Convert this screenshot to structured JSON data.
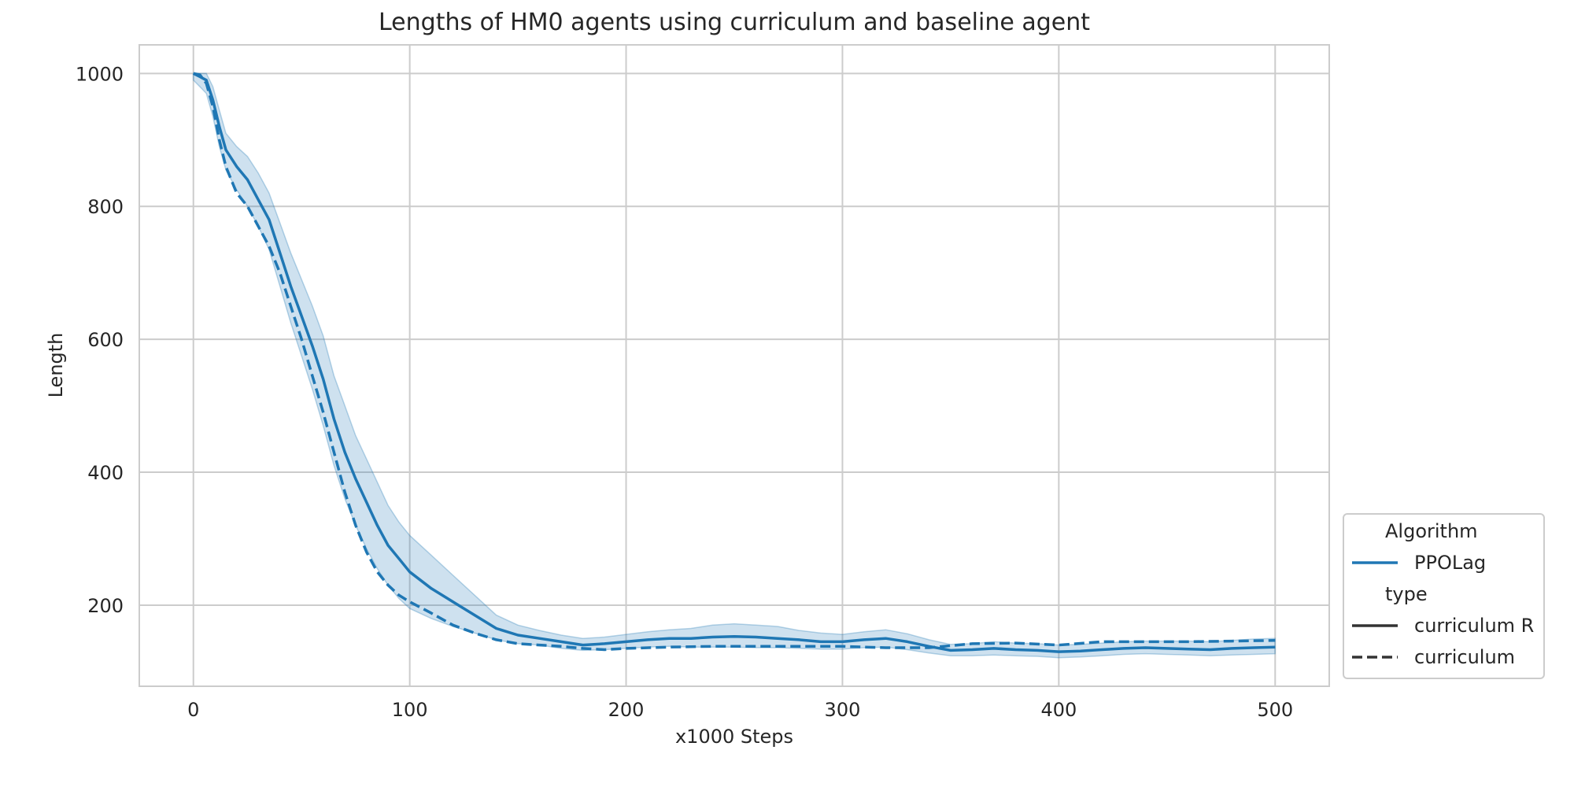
{
  "chart_data": {
    "type": "line",
    "title": "Lengths of HM0 agents using curriculum and baseline agent",
    "xlabel": "x1000 Steps",
    "ylabel": "Length",
    "xlim": [
      -25,
      525
    ],
    "ylim": [
      78,
      1043
    ],
    "x_ticks": [
      0,
      100,
      200,
      300,
      400,
      500
    ],
    "y_ticks": [
      200,
      400,
      600,
      800,
      1000
    ],
    "grid": true,
    "legend_placement": "lower-right-outside",
    "colors": {
      "line": "#1f77b4",
      "band": "#1f77b4",
      "grid": "#cccccc",
      "spine": "#cccccc",
      "text": "#262626"
    },
    "legend": {
      "groups": [
        {
          "title": "Algorithm",
          "entries": [
            {
              "label": "PPOLag",
              "style": "solid",
              "color": "#1f77b4"
            }
          ]
        },
        {
          "title": "type",
          "entries": [
            {
              "label": "curriculum R",
              "style": "solid",
              "color": "#333333"
            },
            {
              "label": "curriculum",
              "style": "dashed",
              "color": "#333333"
            }
          ]
        }
      ]
    },
    "series": [
      {
        "algorithm": "PPOLag",
        "type": "curriculum R",
        "style": "solid",
        "x": [
          0,
          3,
          6,
          9,
          12,
          15,
          20,
          25,
          30,
          35,
          40,
          45,
          50,
          55,
          60,
          65,
          70,
          75,
          80,
          85,
          90,
          95,
          100,
          110,
          120,
          130,
          140,
          150,
          160,
          170,
          180,
          190,
          200,
          210,
          220,
          230,
          240,
          250,
          260,
          270,
          280,
          290,
          300,
          310,
          320,
          330,
          340,
          350,
          360,
          370,
          380,
          390,
          400,
          410,
          420,
          430,
          440,
          450,
          460,
          470,
          480,
          490,
          500
        ],
        "y": [
          1000,
          995,
          990,
          960,
          920,
          885,
          860,
          840,
          810,
          780,
          730,
          680,
          635,
          590,
          540,
          480,
          430,
          390,
          355,
          320,
          290,
          270,
          250,
          225,
          205,
          185,
          165,
          155,
          150,
          145,
          140,
          142,
          145,
          148,
          150,
          150,
          152,
          153,
          152,
          150,
          148,
          145,
          145,
          148,
          150,
          145,
          138,
          132,
          133,
          135,
          133,
          132,
          130,
          131,
          133,
          135,
          136,
          135,
          134,
          133,
          135,
          136,
          137
        ],
        "ci_lower": [
          990,
          980,
          970,
          935,
          890,
          855,
          825,
          800,
          770,
          735,
          680,
          625,
          575,
          525,
          470,
          410,
          360,
          320,
          285,
          255,
          230,
          210,
          195,
          180,
          168,
          158,
          148,
          142,
          140,
          135,
          132,
          133,
          135,
          137,
          138,
          137,
          137,
          137,
          136,
          136,
          135,
          134,
          134,
          136,
          137,
          133,
          128,
          124,
          124,
          125,
          124,
          123,
          121,
          122,
          124,
          126,
          127,
          126,
          125,
          124,
          125,
          126,
          127
        ],
        "ci_upper": [
          1000,
          1000,
          1000,
          980,
          945,
          910,
          890,
          875,
          850,
          820,
          775,
          730,
          690,
          650,
          605,
          545,
          500,
          455,
          420,
          385,
          350,
          325,
          305,
          275,
          245,
          215,
          185,
          170,
          162,
          155,
          150,
          152,
          156,
          160,
          163,
          165,
          170,
          172,
          170,
          168,
          162,
          158,
          156,
          160,
          163,
          157,
          148,
          141,
          142,
          145,
          143,
          142,
          140,
          141,
          143,
          145,
          146,
          146,
          146,
          145,
          147,
          149,
          150
        ]
      },
      {
        "algorithm": "PPOLag",
        "type": "curriculum",
        "style": "dashed",
        "x": [
          0,
          3,
          6,
          9,
          12,
          15,
          20,
          25,
          30,
          35,
          40,
          45,
          50,
          55,
          60,
          65,
          70,
          75,
          80,
          85,
          90,
          95,
          100,
          110,
          120,
          130,
          140,
          150,
          160,
          170,
          180,
          190,
          200,
          220,
          240,
          260,
          280,
          300,
          320,
          340,
          360,
          380,
          400,
          420,
          440,
          460,
          480,
          500
        ],
        "y": [
          1000,
          998,
          985,
          950,
          900,
          860,
          820,
          800,
          770,
          740,
          700,
          650,
          600,
          545,
          490,
          430,
          370,
          320,
          280,
          250,
          230,
          215,
          205,
          188,
          170,
          158,
          148,
          142,
          140,
          138,
          135,
          133,
          135,
          137,
          138,
          138,
          138,
          138,
          136,
          136,
          142,
          143,
          140,
          145,
          145,
          145,
          146,
          147
        ]
      }
    ]
  }
}
